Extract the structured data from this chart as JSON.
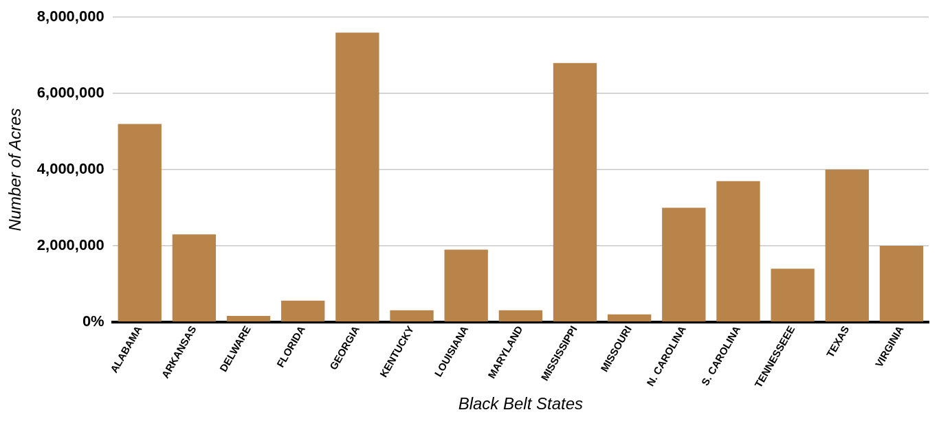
{
  "chart_data": {
    "type": "bar",
    "xlabel": "Black Belt States",
    "ylabel": "Number of Acres",
    "categories": [
      "ALABAMA",
      "ARKANSAS",
      "DELWARE",
      "FLORIDA",
      "GEORGIA",
      "KENTUCKY",
      "LOUISIANA",
      "MARYLAND",
      "MISSISSIPPI",
      "MISSOURI",
      "N. CAROLINA",
      "S. CAROLINA",
      "TENNESSEEE",
      "TEXAS",
      "VIRGINIA"
    ],
    "values": [
      5200000,
      2300000,
      160000,
      560000,
      7600000,
      310000,
      1900000,
      310000,
      6800000,
      200000,
      3000000,
      3700000,
      1400000,
      4000000,
      2000000
    ],
    "color": "#b8844a",
    "ylim": [
      0,
      8000000
    ],
    "yticks": [
      {
        "value": 0,
        "label": "0%"
      },
      {
        "value": 2000000,
        "label": "2,000,000"
      },
      {
        "value": 4000000,
        "label": "4,000,000"
      },
      {
        "value": 6000000,
        "label": "6,000,000"
      },
      {
        "value": 8000000,
        "label": "8,000,000"
      }
    ],
    "grid": "y",
    "legend": false
  }
}
